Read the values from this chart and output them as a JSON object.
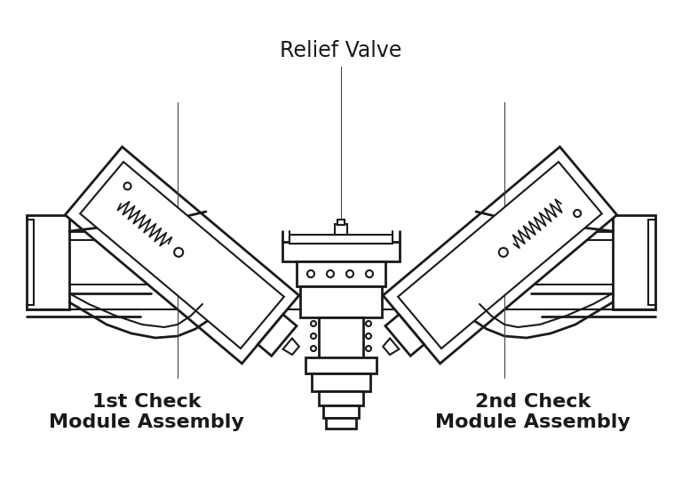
{
  "title": "Relief Valve",
  "label_left": "1st Check\nModule Assembly",
  "label_right": "2nd Check\nModule Assembly",
  "bg_color": "#ffffff",
  "line_color": "#1a1a1a",
  "title_fontsize": 17,
  "label_fontsize": 16,
  "fig_width": 7.68,
  "fig_height": 5.5,
  "dpi": 100
}
